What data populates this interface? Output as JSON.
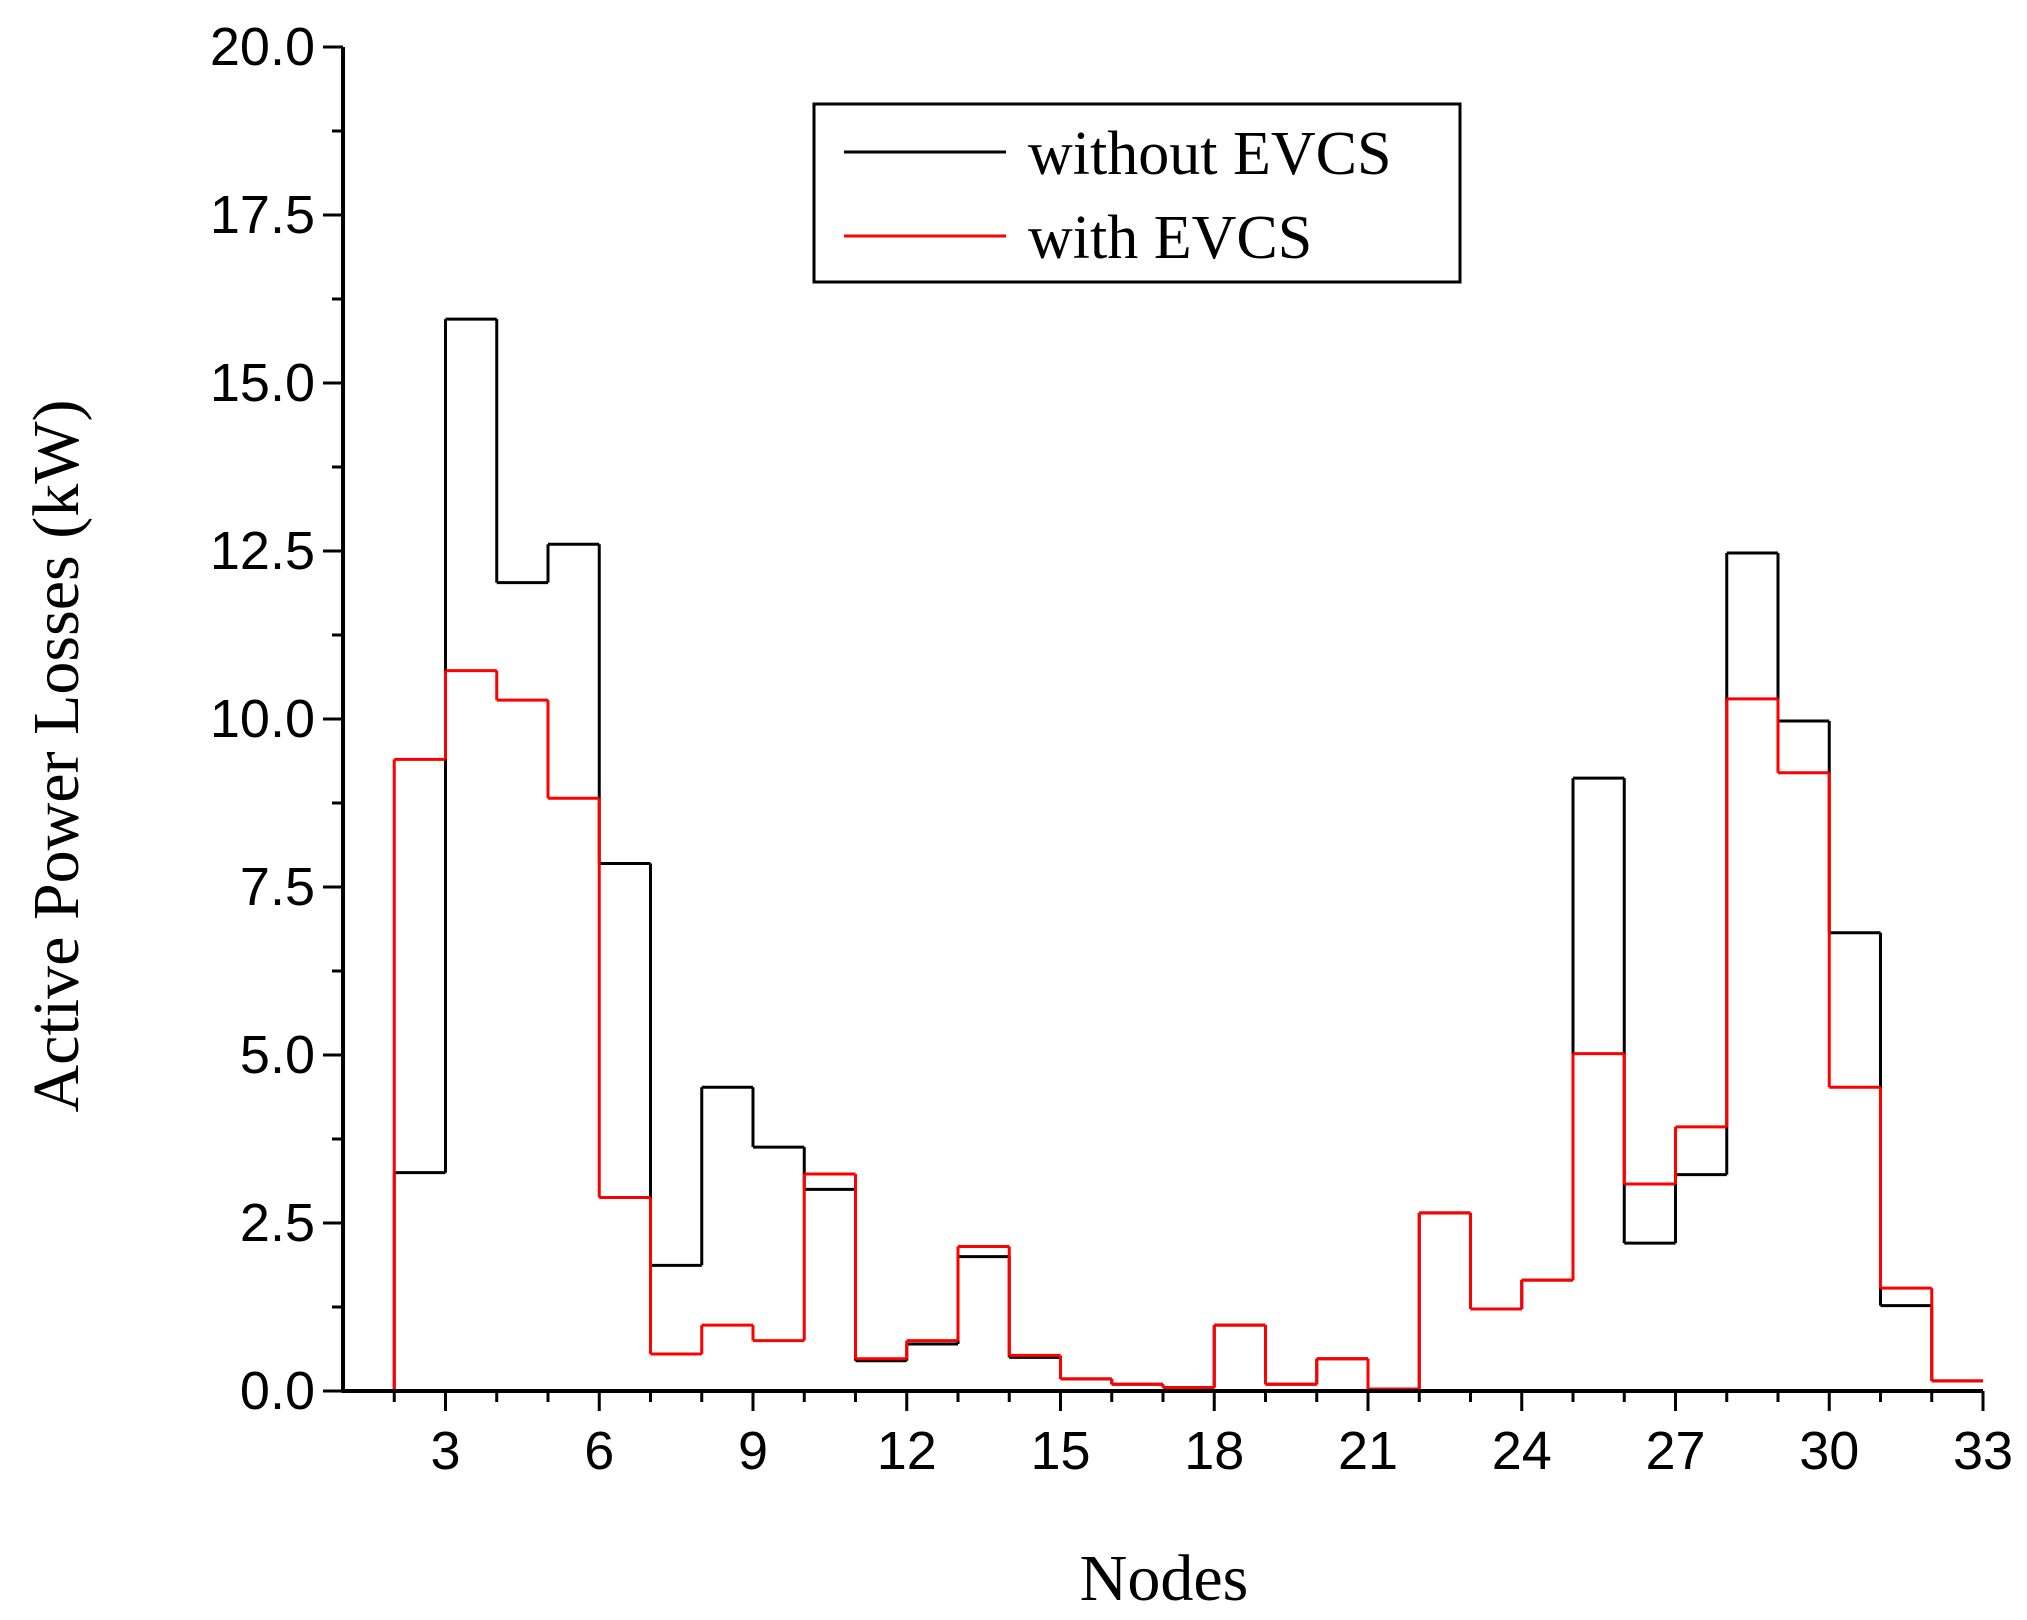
{
  "chart_data": {
    "type": "line",
    "step": "histogram",
    "title": "",
    "xlabel": "Nodes",
    "ylabel": "Active Power Losses (kW)",
    "xlim": [
      1,
      33
    ],
    "ylim": [
      0,
      20
    ],
    "xticks": [
      3,
      6,
      9,
      12,
      15,
      18,
      21,
      24,
      27,
      30,
      33
    ],
    "xtick_labels": [
      "3",
      "6",
      "9",
      "12",
      "15",
      "18",
      "21",
      "24",
      "27",
      "30",
      "33"
    ],
    "yticks": [
      0,
      2.5,
      5,
      7.5,
      10,
      12.5,
      15,
      17.5,
      20
    ],
    "ytick_labels": [
      "0.0",
      "2.5",
      "5.0",
      "7.5",
      "10.0",
      "12.5",
      "15.0",
      "17.5",
      "20.0"
    ],
    "legend_position": "top-center",
    "bins": [
      1,
      2,
      3,
      4,
      5,
      6,
      7,
      8,
      9,
      10,
      11,
      12,
      13,
      14,
      15,
      16,
      17,
      18,
      19,
      20,
      21,
      22,
      23,
      24,
      25,
      26,
      27,
      28,
      29,
      30,
      31,
      32
    ],
    "series": [
      {
        "name": "without EVCS",
        "color": "#000000",
        "values": [
          0,
          3.25,
          15.95,
          12.03,
          12.6,
          7.85,
          1.87,
          4.52,
          3.63,
          3.0,
          0.45,
          0.7,
          2.0,
          0.5,
          0.18,
          0.1,
          0.05,
          0.98,
          0.1,
          0.48,
          0.03,
          2.65,
          1.22,
          1.65,
          9.12,
          2.2,
          3.22,
          12.47,
          9.97,
          6.82,
          1.27,
          0.15
        ]
      },
      {
        "name": "with EVCS",
        "color": "#ff0000",
        "values": [
          0,
          9.4,
          10.72,
          10.28,
          8.82,
          2.88,
          0.55,
          0.98,
          0.75,
          3.23,
          0.48,
          0.75,
          2.15,
          0.53,
          0.18,
          0.1,
          0.05,
          0.98,
          0.1,
          0.48,
          0.03,
          2.65,
          1.22,
          1.65,
          5.02,
          3.08,
          3.93,
          10.3,
          9.2,
          4.52,
          1.53,
          0.15
        ]
      }
    ]
  }
}
